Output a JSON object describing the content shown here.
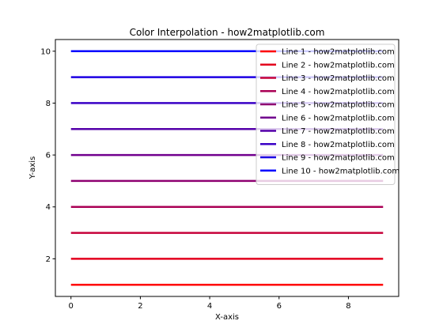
{
  "chart_data": {
    "type": "line",
    "title": "Color Interpolation - how2matplotlib.com",
    "xlabel": "X-axis",
    "ylabel": "Y-axis",
    "xlim": [
      -0.45,
      9.45
    ],
    "ylim": [
      0.55,
      10.45
    ],
    "x_ticks": [
      0,
      2,
      4,
      6,
      8
    ],
    "y_ticks": [
      2,
      4,
      6,
      8,
      10
    ],
    "x": [
      0,
      9
    ],
    "legend_position": "top-right",
    "grid": false,
    "series": [
      {
        "name": "Line 1 - how2matplotlib.com",
        "values": [
          1,
          1
        ],
        "color": "#ff0000"
      },
      {
        "name": "Line 2 - how2matplotlib.com",
        "values": [
          2,
          2
        ],
        "color": "#e3001c"
      },
      {
        "name": "Line 3 - how2matplotlib.com",
        "values": [
          3,
          3
        ],
        "color": "#c60039"
      },
      {
        "name": "Line 4 - how2matplotlib.com",
        "values": [
          4,
          4
        ],
        "color": "#aa0055"
      },
      {
        "name": "Line 5 - how2matplotlib.com",
        "values": [
          5,
          5
        ],
        "color": "#8e0071"
      },
      {
        "name": "Line 6 - how2matplotlib.com",
        "values": [
          6,
          6
        ],
        "color": "#71008e"
      },
      {
        "name": "Line 7 - how2matplotlib.com",
        "values": [
          7,
          7
        ],
        "color": "#5500aa"
      },
      {
        "name": "Line 8 - how2matplotlib.com",
        "values": [
          8,
          8
        ],
        "color": "#3900c6"
      },
      {
        "name": "Line 9 - how2matplotlib.com",
        "values": [
          9,
          9
        ],
        "color": "#1c00e3"
      },
      {
        "name": "Line 10 - how2matplotlib.com",
        "values": [
          10,
          10
        ],
        "color": "#0000ff"
      }
    ]
  }
}
